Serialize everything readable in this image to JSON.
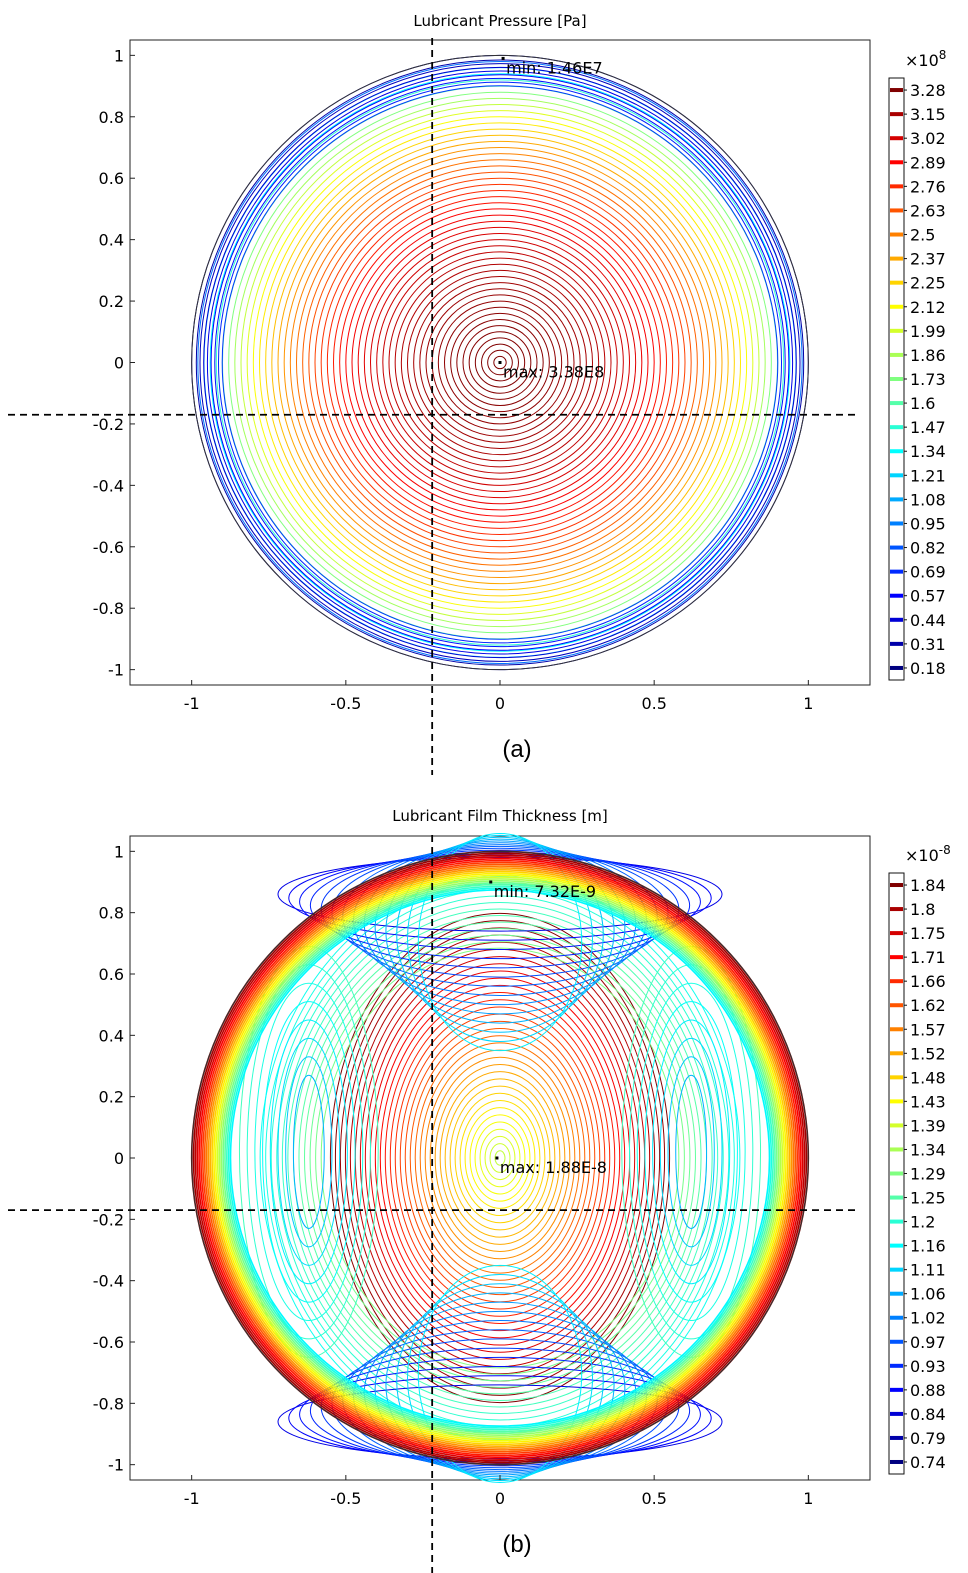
{
  "chart_data": [
    {
      "type": "contour",
      "title": "Lubricant Pressure [Pa]",
      "caption": "(a)",
      "xlabel": "",
      "ylabel": "",
      "xlim": [
        -1.2,
        1.2
      ],
      "ylim": [
        -1.05,
        1.05
      ],
      "x_ticks": [
        -1,
        -0.5,
        0,
        0.5,
        1
      ],
      "x_tick_labels": [
        "-1",
        "-0.5",
        "0",
        "0.5",
        "1"
      ],
      "y_ticks": [
        1,
        0.8,
        0.6,
        0.4,
        0.2,
        0,
        -0.2,
        -0.4,
        -0.6,
        -0.8,
        -1
      ],
      "y_tick_labels": [
        "1",
        "0.8",
        "0.6",
        "0.4",
        "0.2",
        "0",
        "-0.2",
        "-0.4",
        "-0.6",
        "-0.8",
        "-1"
      ],
      "grid": false,
      "colorbar": {
        "multiplier": "×10",
        "exponent": "8",
        "levels": [
          "3.28",
          "3.15",
          "3.02",
          "2.89",
          "2.76",
          "2.63",
          "2.5",
          "2.37",
          "2.25",
          "2.12",
          "1.99",
          "1.86",
          "1.73",
          "1.6",
          "1.47",
          "1.34",
          "1.21",
          "1.08",
          "0.95",
          "0.82",
          "0.69",
          "0.57",
          "0.44",
          "0.31",
          "0.18"
        ]
      },
      "annotations": [
        {
          "text": "min: 1.46E7",
          "x": 0.01,
          "y": 0.99
        },
        {
          "text": "max: 3.38E8",
          "x": 0.0,
          "y": 0.0
        }
      ],
      "reference_lines": {
        "vertical_x": -0.22,
        "horizontal_y": -0.17
      },
      "pattern": "pressure"
    },
    {
      "type": "contour",
      "title": "Lubricant Film Thickness [m]",
      "caption": "(b)",
      "xlabel": "",
      "ylabel": "",
      "xlim": [
        -1.2,
        1.2
      ],
      "ylim": [
        -1.05,
        1.05
      ],
      "x_ticks": [
        -1,
        -0.5,
        0,
        0.5,
        1
      ],
      "x_tick_labels": [
        "-1",
        "-0.5",
        "0",
        "0.5",
        "1"
      ],
      "y_ticks": [
        1,
        0.8,
        0.6,
        0.4,
        0.2,
        0,
        -0.2,
        -0.4,
        -0.6,
        -0.8,
        -1
      ],
      "y_tick_labels": [
        "1",
        "0.8",
        "0.6",
        "0.4",
        "0.2",
        "0",
        "-0.2",
        "-0.4",
        "-0.6",
        "-0.8",
        "-1"
      ],
      "grid": false,
      "colorbar": {
        "multiplier": "×10",
        "exponent": "-8",
        "levels": [
          "1.84",
          "1.8",
          "1.75",
          "1.71",
          "1.66",
          "1.62",
          "1.57",
          "1.52",
          "1.48",
          "1.43",
          "1.39",
          "1.34",
          "1.29",
          "1.25",
          "1.2",
          "1.16",
          "1.11",
          "1.06",
          "1.02",
          "0.97",
          "0.93",
          "0.88",
          "0.84",
          "0.79",
          "0.74"
        ]
      },
      "annotations": [
        {
          "text": "min: 7.32E-9",
          "x": -0.03,
          "y": 0.9
        },
        {
          "text": "max: 1.88E-8",
          "x": -0.01,
          "y": 0.0
        }
      ],
      "reference_lines": {
        "vertical_x": -0.22,
        "horizontal_y": -0.17
      },
      "pattern": "thickness"
    }
  ]
}
